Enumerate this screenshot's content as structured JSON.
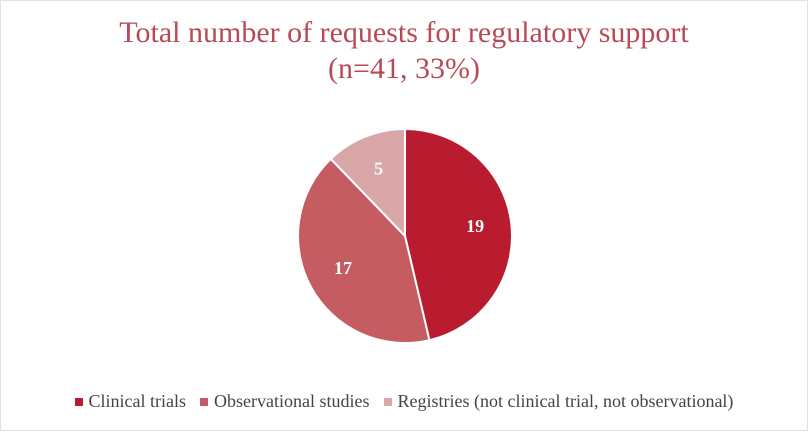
{
  "chart_data": {
    "type": "pie",
    "title": "Total number of requests for regulatory support",
    "subtitle": "(n=41, 33%)",
    "slices": [
      {
        "label": "Clinical trials",
        "value": 19,
        "color": "#b81c2e"
      },
      {
        "label": "Observational studies",
        "value": 17,
        "color": "#c45c62"
      },
      {
        "label": "Registries (not clinical trial, not observational)",
        "value": 5,
        "color": "#d9a7a7"
      }
    ],
    "legend_position": "bottom",
    "data_labels": true
  }
}
